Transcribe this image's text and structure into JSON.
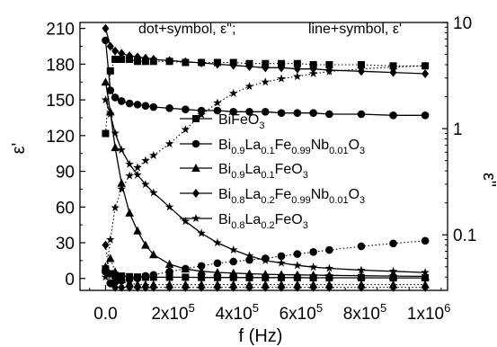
{
  "chart_data": {
    "type": "line",
    "notes": {
      "left": "dot+symbol, ε\";",
      "right": "line+symbol, ε'"
    },
    "xlabel": "f (Hz)",
    "ylabel_left": "ε'",
    "ylabel_right": "ε\"",
    "x_ticks": [
      {
        "value": 0,
        "mant": "0.0",
        "exp": ""
      },
      {
        "value": 200000,
        "mant": "2x10",
        "exp": "5"
      },
      {
        "value": 400000,
        "mant": "4x10",
        "exp": "5"
      },
      {
        "value": 600000,
        "mant": "6x10",
        "exp": "5"
      },
      {
        "value": 800000,
        "mant": "8x10",
        "exp": "5"
      },
      {
        "value": 1000000,
        "mant": "1x10",
        "exp": "6"
      }
    ],
    "xlim": [
      -80000,
      1070000
    ],
    "ylim_left": [
      -10,
      215
    ],
    "y_ticks_left": [
      0,
      30,
      60,
      90,
      120,
      150,
      180,
      210
    ],
    "ylim_right": [
      0.03,
      10
    ],
    "y_ticks_right": [
      {
        "value": 0.1,
        "label": "0.1"
      },
      {
        "value": 1,
        "label": "1"
      },
      {
        "value": 10,
        "label": "10"
      }
    ],
    "scale_right": "log",
    "legend": {
      "placement": "center",
      "entries": [
        {
          "marker": "square",
          "parts": [
            {
              "t": "BiFeO"
            },
            {
              "t": "3",
              "sub": true
            }
          ]
        },
        {
          "marker": "circle",
          "parts": [
            {
              "t": "Bi"
            },
            {
              "t": "0.9",
              "sub": true
            },
            {
              "t": "La"
            },
            {
              "t": "0.1",
              "sub": true
            },
            {
              "t": "Fe"
            },
            {
              "t": "0.99",
              "sub": true
            },
            {
              "t": "Nb"
            },
            {
              "t": "0.01",
              "sub": true
            },
            {
              "t": "O"
            },
            {
              "t": "3",
              "sub": true
            }
          ]
        },
        {
          "marker": "triangle",
          "parts": [
            {
              "t": "Bi"
            },
            {
              "t": "0.9",
              "sub": true
            },
            {
              "t": "La"
            },
            {
              "t": "0.1",
              "sub": true
            },
            {
              "t": "FeO"
            },
            {
              "t": "3",
              "sub": true
            }
          ]
        },
        {
          "marker": "diamond",
          "parts": [
            {
              "t": "Bi"
            },
            {
              "t": "0.8",
              "sub": true
            },
            {
              "t": "La"
            },
            {
              "t": "0.2",
              "sub": true
            },
            {
              "t": "Fe"
            },
            {
              "t": "0.99",
              "sub": true
            },
            {
              "t": "Nb"
            },
            {
              "t": "0.01",
              "sub": true
            },
            {
              "t": "O"
            },
            {
              "t": "3",
              "sub": true
            }
          ]
        },
        {
          "marker": "star",
          "parts": [
            {
              "t": "Bi"
            },
            {
              "t": "0.8",
              "sub": true
            },
            {
              "t": "La"
            },
            {
              "t": "0.2",
              "sub": true
            },
            {
              "t": "FeO"
            },
            {
              "t": "3",
              "sub": true
            }
          ]
        }
      ]
    },
    "x_points": [
      0,
      15000,
      30000,
      50000,
      75000,
      100000,
      125000,
      150000,
      200000,
      250000,
      300000,
      350000,
      400000,
      450000,
      500000,
      550000,
      600000,
      650000,
      700000,
      800000,
      900000,
      1000000
    ],
    "series": [
      {
        "marker": "square",
        "axis": "left",
        "style": "solid",
        "y": [
          8,
          4,
          2.5,
          2,
          1.5,
          1.2,
          1,
          1,
          1,
          1,
          0.8,
          0.8,
          0.8,
          0.7,
          0.7,
          0.7,
          0.7,
          0.6,
          0.6,
          0.6,
          0.5,
          0.5
        ]
      },
      {
        "marker": "circle",
        "axis": "left",
        "style": "solid",
        "y": [
          200,
          158,
          152,
          149,
          147,
          146,
          145,
          144,
          143,
          142,
          141,
          141,
          140,
          140,
          140,
          139,
          139,
          139,
          138,
          138,
          137,
          137
        ]
      },
      {
        "marker": "triangle",
        "axis": "left",
        "style": "solid",
        "y": [
          165,
          140,
          110,
          80,
          55,
          40,
          28,
          20,
          12,
          8,
          6,
          5,
          4.5,
          4,
          3.5,
          3.2,
          3,
          2.8,
          2.6,
          2.3,
          2,
          1.8
        ]
      },
      {
        "marker": "diamond",
        "axis": "left",
        "style": "solid",
        "y": [
          210,
          195,
          191,
          189,
          187,
          186,
          185,
          184,
          183,
          182,
          181,
          180,
          179,
          178,
          177,
          177,
          176,
          176,
          175,
          174,
          173,
          172
        ]
      },
      {
        "marker": "star",
        "axis": "left",
        "style": "solid",
        "y": [
          150,
          138,
          122,
          108,
          96,
          87,
          79,
          72,
          60,
          48,
          38,
          30,
          24,
          19,
          15,
          13,
          11,
          9.5,
          8.5,
          7,
          6,
          5
        ]
      },
      {
        "marker": "square",
        "axis": "right",
        "style": "dotted",
        "y": [
          0.9,
          3.5,
          4.5,
          4.5,
          4.5,
          4.3,
          4.3,
          4.3,
          4.3,
          4.2,
          4.2,
          4.2,
          4.2,
          4.1,
          4.1,
          4.1,
          4.1,
          4.0,
          4.0,
          4.0,
          3.9,
          3.9
        ]
      },
      {
        "marker": "circle",
        "axis": "right",
        "style": "dotted",
        "y": [
          0.045,
          0.035,
          0.036,
          0.037,
          0.038,
          0.039,
          0.041,
          0.042,
          0.045,
          0.048,
          0.051,
          0.054,
          0.056,
          0.058,
          0.06,
          0.063,
          0.066,
          0.069,
          0.072,
          0.078,
          0.083,
          0.088
        ]
      },
      {
        "marker": "triangle",
        "axis": "right",
        "style": "dotted",
        "y": [
          0.05,
          0.06,
          0.045,
          0.038,
          0.035,
          0.034,
          0.034,
          0.034,
          0.034,
          0.034,
          0.034,
          0.034,
          0.034,
          0.034,
          0.034,
          0.034,
          0.034,
          0.034,
          0.034,
          0.034,
          0.034,
          0.034
        ]
      },
      {
        "marker": "diamond",
        "axis": "right",
        "style": "dotted",
        "y": [
          0.08,
          0.035,
          0.032,
          0.032,
          0.032,
          0.032,
          0.032,
          0.032,
          0.032,
          0.032,
          0.032,
          0.032,
          0.032,
          0.032,
          0.032,
          0.032,
          0.032,
          0.032,
          0.032,
          0.032,
          0.032,
          0.032
        ]
      },
      {
        "marker": "star",
        "axis": "right",
        "style": "dotted",
        "y": [
          0.04,
          0.09,
          0.18,
          0.27,
          0.36,
          0.43,
          0.5,
          0.56,
          0.72,
          0.98,
          1.35,
          1.75,
          2.15,
          2.5,
          2.75,
          2.95,
          3.1,
          3.3,
          3.45,
          3.65,
          3.8,
          3.9
        ]
      }
    ]
  }
}
